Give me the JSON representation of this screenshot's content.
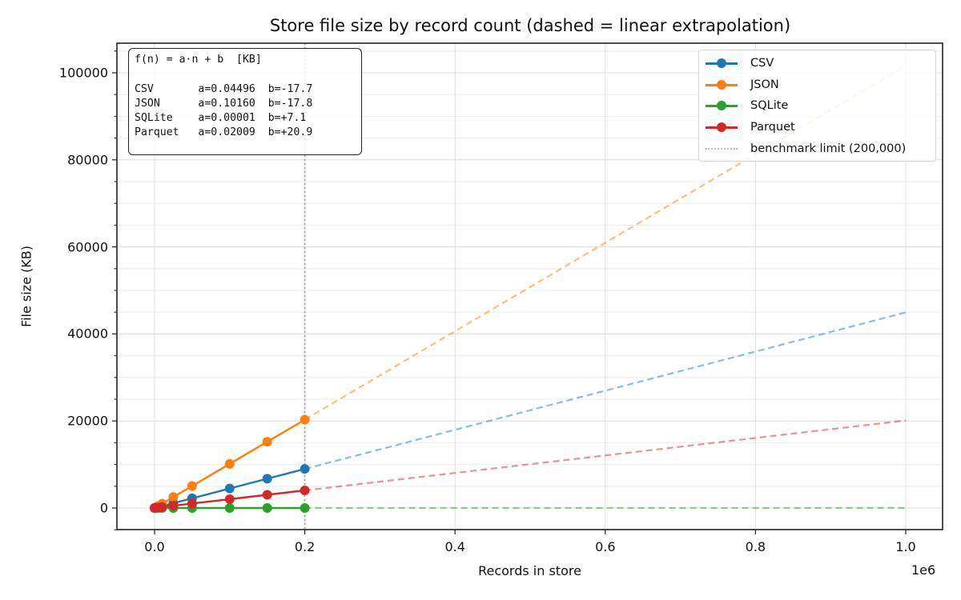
{
  "chart_data": {
    "type": "line",
    "title": "Store file size by record count (dashed = linear extrapolation)",
    "xlabel": "Records in store",
    "ylabel": "File size (KB)",
    "x_offset_label": "1e6",
    "xlim": [
      -50000,
      1050000
    ],
    "ylim": [
      -5000,
      106500
    ],
    "x_ticks": [
      0,
      200000,
      400000,
      600000,
      800000,
      1000000
    ],
    "x_tick_labels": [
      "0.0",
      "0.2",
      "0.4",
      "0.6",
      "0.8",
      "1.0"
    ],
    "y_ticks": [
      0,
      20000,
      40000,
      60000,
      80000,
      100000
    ],
    "y_tick_labels": [
      "0",
      "20000",
      "40000",
      "60000",
      "80000",
      "100000"
    ],
    "y_minor_step": 5000,
    "grid": true,
    "legend_position": "upper right",
    "x": [
      1000,
      5000,
      10000,
      25000,
      50000,
      100000,
      150000,
      200000
    ],
    "series": [
      {
        "name": "CSV",
        "color": "#1f77b4",
        "values": [
          27,
          207,
          432,
          1106,
          2230,
          4478,
          6726,
          8974
        ],
        "fit": {
          "a": 0.04496,
          "b": -17.7
        },
        "extrapolated_at_1e6": 44942
      },
      {
        "name": "JSON",
        "color": "#ff7f0e",
        "values": [
          84,
          490,
          998,
          2522,
          5062,
          10142,
          15222,
          20302
        ],
        "fit": {
          "a": 0.1016,
          "b": -17.8
        },
        "extrapolated_at_1e6": 101582
      },
      {
        "name": "SQLite",
        "color": "#2ca02c",
        "values": [
          7,
          7,
          7,
          7,
          8,
          8,
          9,
          9
        ],
        "fit": {
          "a": 1e-05,
          "b": 7.1
        },
        "extrapolated_at_1e6": 17
      },
      {
        "name": "Parquet",
        "color": "#d62728",
        "values": [
          41,
          121,
          222,
          523,
          1025,
          2030,
          3034,
          4039
        ],
        "fit": {
          "a": 0.02009,
          "b": 20.9
        },
        "extrapolated_at_1e6": 20111
      }
    ],
    "reference_line": {
      "label": "benchmark limit (200,000)",
      "x": 200000,
      "style": "dotted",
      "color": "#aaaaaa"
    },
    "extrapolation": {
      "from_x": 200000,
      "to_x": 1000000,
      "style": "dashed",
      "alpha": 0.5
    },
    "annotation_box": {
      "header": "f(n) = a·n + b  [KB]",
      "rows": [
        "CSV       a=0.04496  b=-17.7",
        "JSON      a=0.10160  b=-17.8",
        "SQLite    a=0.00001  b=+7.1",
        "Parquet   a=0.02009  b=+20.9"
      ]
    }
  }
}
